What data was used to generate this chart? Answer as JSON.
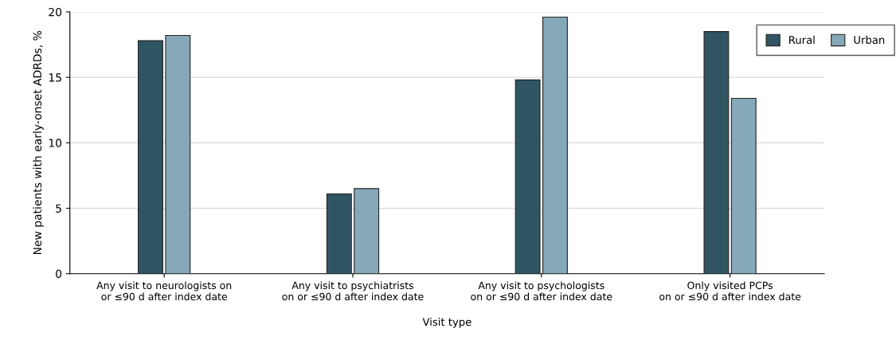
{
  "chart_data": {
    "type": "bar",
    "categories": [
      "Any visit to neurologists on\nor ≤90 d after index date",
      "Any visit to psychiatrists\non or ≤90 d after index date",
      "Any visit to psychologists\non or ≤90 d after index date",
      "Only visited PCPs\non or ≤90 d after index date"
    ],
    "series": [
      {
        "name": "Rural",
        "color": "#2f5563",
        "values": [
          17.8,
          6.1,
          14.8,
          18.5
        ]
      },
      {
        "name": "Urban",
        "color": "#85a9b8",
        "values": [
          18.2,
          6.5,
          19.6,
          13.4
        ]
      }
    ],
    "xlabel": "Visit type",
    "ylabel": "New patients with early-onset ADRDs, %",
    "ylim": [
      0,
      20
    ],
    "yticks": [
      0,
      5,
      10,
      15,
      20
    ],
    "grid": "y",
    "legend": "top right"
  }
}
